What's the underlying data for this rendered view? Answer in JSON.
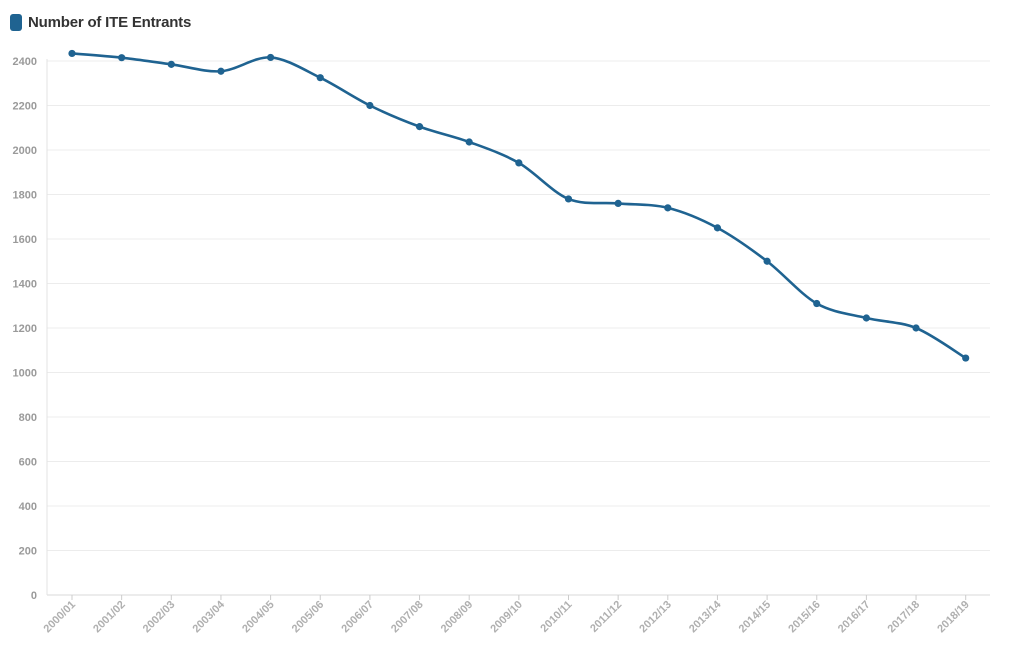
{
  "chart_data": {
    "type": "line",
    "title": "",
    "xlabel": "",
    "ylabel": "",
    "ylim": [
      0,
      2400
    ],
    "yticks": [
      0,
      200,
      400,
      600,
      800,
      1000,
      1200,
      1400,
      1600,
      1800,
      2000,
      2200,
      2400
    ],
    "grid": true,
    "legend_position": "top-left",
    "categories": [
      "2000/01",
      "2001/02",
      "2002/03",
      "2003/04",
      "2004/05",
      "2005/06",
      "2006/07",
      "2007/08",
      "2008/09",
      "2009/10",
      "2010/11",
      "2011/12",
      "2012/13",
      "2013/14",
      "2014/15",
      "2015/16",
      "2016/17",
      "2017/18",
      "2018/19"
    ],
    "series": [
      {
        "name": "Number of ITE Entrants",
        "color": "#1f6391",
        "values": [
          2434,
          2415,
          2385,
          2354,
          2416,
          2325,
          2200,
          2105,
          2036,
          1942,
          1780,
          1760,
          1740,
          1650,
          1500,
          1310,
          1245,
          1200,
          1065
        ]
      }
    ]
  }
}
